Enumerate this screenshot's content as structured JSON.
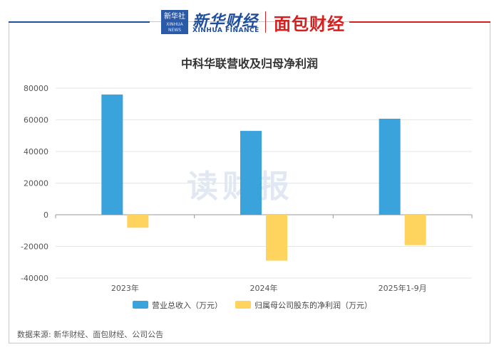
{
  "brand": {
    "badge_text": "新华社",
    "badge_sub": "XINHUA NEWS",
    "name": "新华财经",
    "english": "XINHUA FINANCE",
    "partner": "面包财经"
  },
  "watermark": "读财报",
  "source": "数据来源: 新华财经、面包财经、公司公告",
  "colors": {
    "revenue": "#3aa3dc",
    "profit": "#ffd45e",
    "axis": "#888888",
    "grid": "#e6e6e6"
  },
  "chart_data": {
    "type": "bar",
    "title": "中科华联营收及归母净利润",
    "categories": [
      "2023年",
      "2024年",
      "2025年1-9月"
    ],
    "series": [
      {
        "name": "营业总收入（万元）",
        "values": [
          76000,
          53000,
          60700
        ]
      },
      {
        "name": "归属母公司股东的净利润（万元）",
        "values": [
          -8200,
          -29000,
          -19200
        ]
      }
    ],
    "ylim": [
      -40000,
      80000
    ],
    "yticks": [
      80000,
      60000,
      40000,
      20000,
      0,
      -20000,
      -40000
    ],
    "grid": true,
    "legend_position": "bottom"
  }
}
